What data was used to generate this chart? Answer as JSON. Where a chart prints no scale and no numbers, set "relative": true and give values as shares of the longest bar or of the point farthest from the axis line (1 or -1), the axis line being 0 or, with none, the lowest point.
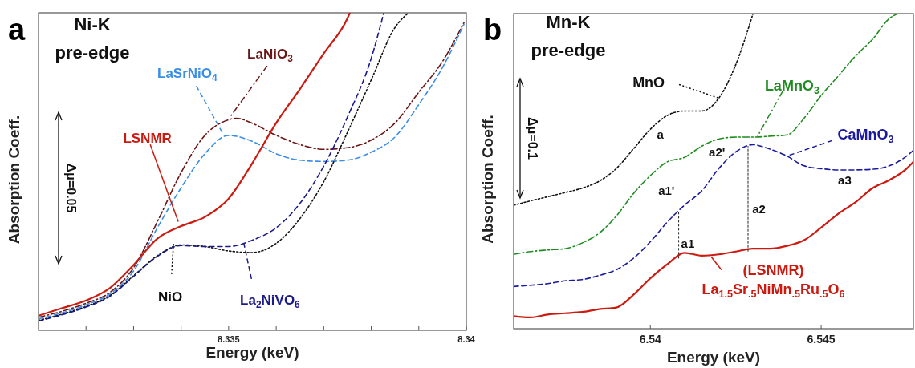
{
  "chart_data": [
    {
      "type": "line",
      "title": "Ni-K\npre-edge",
      "xlabel": "Energy (keV)",
      "ylabel": "Absorption Coeff.",
      "relative": true,
      "xlim": [
        8.331,
        8.34
      ],
      "xticks": [
        {
          "value": 8.332,
          "label": null
        },
        {
          "value": 8.333,
          "label": null
        },
        {
          "value": 8.334,
          "label": null
        },
        8.335,
        {
          "value": 8.336,
          "label": null
        },
        {
          "value": 8.337,
          "label": null
        },
        {
          "value": 8.338,
          "label": null
        },
        {
          "value": 8.339,
          "label": null
        },
        8.34
      ],
      "annotations": [
        "a",
        "Δμ=0.05"
      ],
      "series": [
        {
          "name": "LaNiO$_{3}$",
          "color": "#6b1616",
          "line_style": "dashdot",
          "x": [
            8.331,
            8.3315,
            8.332,
            8.3325,
            8.333,
            8.3335,
            8.334,
            8.3345,
            8.335,
            8.33516,
            8.3355,
            8.336,
            8.3365,
            8.337,
            8.3375,
            8.338,
            8.3385,
            8.339,
            8.3395,
            8.33995
          ],
          "values": [
            0.041,
            0.06,
            0.085,
            0.119,
            0.197,
            0.342,
            0.497,
            0.614,
            0.663,
            0.668,
            0.652,
            0.614,
            0.585,
            0.57,
            0.575,
            0.599,
            0.653,
            0.75,
            0.847,
            0.969
          ]
        },
        {
          "name": "LaSrNiO$_{4}$",
          "color": "#3a8ee6",
          "line_style": "dashed",
          "x": [
            8.331,
            8.3315,
            8.332,
            8.3325,
            8.333,
            8.3335,
            8.334,
            8.3345,
            8.335,
            8.3355,
            8.336,
            8.3365,
            8.337,
            8.3375,
            8.338,
            8.3385,
            8.339,
            8.3395,
            8.33995
          ],
          "values": [
            0.036,
            0.055,
            0.08,
            0.114,
            0.187,
            0.323,
            0.449,
            0.556,
            0.614,
            0.595,
            0.556,
            0.536,
            0.532,
            0.536,
            0.561,
            0.609,
            0.711,
            0.828,
            0.964
          ]
        },
        {
          "name": "LSNMR",
          "color": "#cc1a10",
          "line_style": "solid",
          "x": [
            8.331,
            8.3315,
            8.332,
            8.3325,
            8.333,
            8.3335,
            8.334,
            8.3345,
            8.335,
            8.3355,
            8.336,
            8.3365,
            8.337,
            8.3375,
            8.33755
          ],
          "values": [
            0.046,
            0.07,
            0.094,
            0.133,
            0.206,
            0.289,
            0.328,
            0.357,
            0.415,
            0.527,
            0.653,
            0.76,
            0.872,
            0.983,
            1.0
          ]
        },
        {
          "name": "NiO",
          "color": "#111111",
          "line_style": "dotted",
          "x": [
            8.331,
            8.3315,
            8.332,
            8.3325,
            8.333,
            8.3335,
            8.334,
            8.3345,
            8.335,
            8.3355,
            8.336,
            8.3365,
            8.337,
            8.3375,
            8.338,
            8.3385,
            8.33877
          ],
          "values": [
            0.031,
            0.051,
            0.075,
            0.109,
            0.172,
            0.235,
            0.269,
            0.264,
            0.25,
            0.245,
            0.274,
            0.352,
            0.468,
            0.624,
            0.789,
            0.954,
            0.998
          ]
        },
        {
          "name": "La$_{2}$NiVO$_{6}$",
          "color": "#1a1a8c",
          "line_style": "dashed",
          "x": [
            8.331,
            8.3315,
            8.332,
            8.3325,
            8.333,
            8.3335,
            8.334,
            8.3345,
            8.335,
            8.3355,
            8.336,
            8.3365,
            8.337,
            8.3375,
            8.338,
            8.33826
          ],
          "values": [
            0.029,
            0.049,
            0.073,
            0.107,
            0.17,
            0.233,
            0.267,
            0.264,
            0.264,
            0.284,
            0.323,
            0.4,
            0.517,
            0.672,
            0.857,
            0.998
          ]
        }
      ]
    },
    {
      "type": "line",
      "title": "Mn-K\npre-edge",
      "xlabel": "Energy (keV)",
      "ylabel": "Absorption Coeff.",
      "relative": true,
      "xlim": [
        6.536,
        6.5477
      ],
      "xticks": [
        6.54,
        6.545
      ],
      "annotations": [
        "b",
        "Δμ=0.1",
        "a",
        "a1'",
        "a2'",
        "a2",
        "a3",
        {
          "text": "a1",
          "x": 6.54083,
          "y": 0.223
        }
      ],
      "series": [
        {
          "name": "MnO",
          "color": "#111111",
          "line_style": "dotted",
          "x": [
            6.536,
            6.5365,
            6.537,
            6.5375,
            6.538,
            6.5385,
            6.539,
            6.5395,
            6.54,
            6.5405,
            6.541,
            6.5415,
            6.542,
            6.5425,
            6.543
          ],
          "values": [
            0.392,
            0.406,
            0.419,
            0.432,
            0.446,
            0.468,
            0.508,
            0.57,
            0.633,
            0.677,
            0.691,
            0.691,
            0.731,
            0.838,
            0.998
          ]
        },
        {
          "name": "LaMnO$_{3}$",
          "color": "#1e8c1e",
          "line_style": "dashdot",
          "x": [
            6.536,
            6.5365,
            6.537,
            6.5375,
            6.538,
            6.5385,
            6.539,
            6.5395,
            6.54,
            6.5405,
            6.541,
            6.5415,
            6.542,
            6.5425,
            6.543,
            6.5435,
            6.544,
            6.5445,
            6.545,
            6.5455,
            6.546,
            6.5465,
            6.547,
            6.54725
          ],
          "values": [
            0.236,
            0.245,
            0.25,
            0.254,
            0.272,
            0.303,
            0.357,
            0.428,
            0.486,
            0.53,
            0.544,
            0.579,
            0.602,
            0.608,
            0.608,
            0.611,
            0.615,
            0.668,
            0.74,
            0.802,
            0.865,
            0.918,
            0.985,
            1.0
          ]
        },
        {
          "name": "CaMnO$_{3}$",
          "color": "#1a1aa0",
          "line_style": "dashed",
          "x": [
            6.536,
            6.5365,
            6.537,
            6.5375,
            6.538,
            6.5385,
            6.539,
            6.5395,
            6.54,
            6.5405,
            6.541,
            6.5415,
            6.542,
            6.5425,
            6.543,
            6.5435,
            6.544,
            6.5445,
            6.545,
            6.5455,
            6.546,
            6.5465,
            6.547,
            6.5475,
            6.5477
          ],
          "values": [
            0.134,
            0.138,
            0.143,
            0.152,
            0.156,
            0.169,
            0.187,
            0.223,
            0.276,
            0.339,
            0.392,
            0.437,
            0.508,
            0.561,
            0.584,
            0.57,
            0.548,
            0.517,
            0.508,
            0.504,
            0.504,
            0.506,
            0.517,
            0.548,
            0.566
          ]
        },
        {
          "name": "(LSNMR)\nLa$_{1.5}$Sr$_{.5}$NiMn$_{.5}$Ru$_{.5}$O$_{6}$",
          "color": "#cc1a10",
          "line_style": "solid",
          "x": [
            6.536,
            6.5365,
            6.537,
            6.5375,
            6.538,
            6.5385,
            6.539,
            6.5395,
            6.54,
            6.5405,
            6.541,
            6.5415,
            6.542,
            6.5425,
            6.543,
            6.5435,
            6.544,
            6.5445,
            6.545,
            6.5455,
            6.546,
            6.5465,
            6.547,
            6.5475,
            6.5477
          ],
          "values": [
            0.04,
            0.036,
            0.045,
            0.049,
            0.053,
            0.062,
            0.067,
            0.107,
            0.16,
            0.205,
            0.241,
            0.232,
            0.236,
            0.245,
            0.254,
            0.254,
            0.263,
            0.281,
            0.321,
            0.365,
            0.401,
            0.446,
            0.472,
            0.508,
            0.53
          ]
        }
      ]
    }
  ]
}
